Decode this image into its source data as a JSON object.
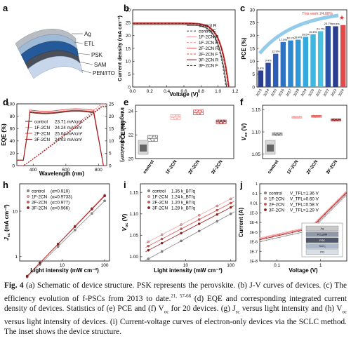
{
  "panels": {
    "a": {
      "letter": "a",
      "layers": [
        "Ag",
        "ETL",
        "PSK",
        "SAM",
        "PEN/ITO"
      ]
    },
    "b": {
      "letter": "b",
      "chart_data": {
        "type": "line",
        "xlabel": "Voltage (V)",
        "ylabel": "Current density (mA cm⁻²)",
        "xlim": [
          0,
          1.2
        ],
        "ylim": [
          0,
          30
        ],
        "xticks": [
          "0.0",
          "0.2",
          "0.4",
          "0.6",
          "0.8",
          "1.0",
          "1.2"
        ],
        "yticks": [
          "0",
          "5",
          "10",
          "15",
          "20",
          "25",
          "30"
        ],
        "legend_position": "right",
        "series": [
          {
            "name": "control R",
            "color": "#333333",
            "dash": "solid",
            "jsc": 24.3,
            "voc": 1.1
          },
          {
            "name": "control F",
            "color": "#555555",
            "dash": "dashed",
            "jsc": 24.2,
            "voc": 1.09
          },
          {
            "name": "1F-2CN R",
            "color": "#f2a3a3",
            "dash": "solid",
            "jsc": 24.6,
            "voc": 1.12
          },
          {
            "name": "1F-2CN F",
            "color": "#f2a3a3",
            "dash": "dashed",
            "jsc": 24.5,
            "voc": 1.115
          },
          {
            "name": "2F-2CN R",
            "color": "#e35555",
            "dash": "solid",
            "jsc": 25.0,
            "voc": 1.13
          },
          {
            "name": "2F-2CN F",
            "color": "#e35555",
            "dash": "dashed",
            "jsc": 24.9,
            "voc": 1.125
          },
          {
            "name": "3F-2CN R",
            "color": "#a01818",
            "dash": "solid",
            "jsc": 24.8,
            "voc": 1.125
          },
          {
            "name": "3F-2CN F",
            "color": "#a01818",
            "dash": "dashed",
            "jsc": 24.7,
            "voc": 1.12
          }
        ]
      }
    },
    "c": {
      "letter": "c",
      "chart_data": {
        "type": "bar",
        "ylabel": "PCE (%)",
        "ylim": [
          0,
          30
        ],
        "yticks": [
          "0",
          "5",
          "10",
          "15",
          "20",
          "25",
          "30"
        ],
        "categories": [
          "2013",
          "2014",
          "2015",
          "2016",
          "2017",
          "2018",
          "2019",
          "2020",
          "2021",
          "2022",
          "2023",
          "2024"
        ],
        "values": [
          6.4,
          9.4,
          12.9,
          17.5,
          18.1,
          18.4,
          19.5,
          20.5,
          21.7,
          23.7,
          23.6,
          24.08
        ],
        "value_labels": [
          "6.4%",
          "9.4%",
          "12.9%",
          "17.5%",
          "18.1%",
          "18.4%",
          "19.5%",
          "20.5%",
          "21.7%",
          "23.7%",
          "23.6%",
          ""
        ],
        "annotation": "This work 24.08%"
      }
    },
    "d": {
      "letter": "d",
      "chart_data": {
        "type": "line",
        "xlabel": "Wavelength (nm)",
        "ylabel": "EQE (%)",
        "ylabel2": "Integrated J_sc (mA/cm²)",
        "xlim": [
          300,
          850
        ],
        "ylim": [
          0,
          100
        ],
        "ylim2": [
          0,
          25
        ],
        "xticks": [
          "400",
          "600",
          "800"
        ],
        "yticks": [
          "0",
          "20",
          "40",
          "60",
          "80",
          "100"
        ],
        "yticks2": [
          "0",
          "5",
          "10",
          "15",
          "20",
          "25"
        ],
        "series": [
          {
            "name": "control",
            "value": "23.71 mA/cm²",
            "color": "#444444"
          },
          {
            "name": "1F-2CN",
            "value": "24.24 mA/cm²",
            "color": "#f2a3a3"
          },
          {
            "name": "2F-2CN",
            "value": "25.04 mA/cm²",
            "color": "#e35555"
          },
          {
            "name": "3F-2CN",
            "value": "24.03 mA/cm²",
            "color": "#a01818"
          }
        ]
      }
    },
    "e": {
      "letter": "e",
      "chart_data": {
        "type": "scatter",
        "ylabel": "PCE (%)",
        "ylim": [
          20,
          24.5
        ],
        "yticks": [
          "20",
          "22",
          "24"
        ],
        "categories": [
          "control",
          "1F-2CN",
          "2F-2CN",
          "3F-2CN"
        ],
        "medians": [
          21.7,
          23.5,
          23.9,
          23.1
        ],
        "spread": [
          0.25,
          0.2,
          0.2,
          0.15
        ],
        "colors": [
          "#777777",
          "#f2a3a3",
          "#e35555",
          "#a01818"
        ]
      }
    },
    "f": {
      "letter": "f",
      "chart_data": {
        "type": "scatter",
        "ylabel": "V_oc (V)",
        "ylim": [
          1.04,
          1.16
        ],
        "yticks": [
          "1.05",
          "1.10",
          "1.15"
        ],
        "categories": [
          "control",
          "1F-2CN",
          "2F-2CN",
          "3F-2CN"
        ],
        "medians": [
          1.095,
          1.133,
          1.135,
          1.127
        ],
        "spread": [
          0.003,
          0.002,
          0.002,
          0.002
        ],
        "colors": [
          "#777777",
          "#f2a3a3",
          "#e35555",
          "#a01818"
        ]
      }
    },
    "h": {
      "letter": "h",
      "chart_data": {
        "type": "scatter",
        "xlabel": "Light intensity (mW cm⁻²)",
        "ylabel": "J_sc (mA cm⁻²)",
        "xscale": "log",
        "yscale": "log",
        "xticks": [
          "10",
          "100"
        ],
        "yticks": [
          "1",
          "10"
        ],
        "x": [
          1.5,
          3,
          8,
          20,
          50,
          100
        ],
        "series": [
          {
            "name": "control",
            "alpha": "(α=0.919)",
            "color": "#888888"
          },
          {
            "name": "1F-2CN",
            "alpha": "(α=0.9733)",
            "color": "#f2a3a3"
          },
          {
            "name": "2F-2CN",
            "alpha": "(α=0.977)",
            "color": "#e35555"
          },
          {
            "name": "3F-2CN",
            "alpha": "(α=0.966)",
            "color": "#a01818"
          }
        ]
      }
    },
    "i": {
      "letter": "i",
      "chart_data": {
        "type": "scatter",
        "xlabel": "Light intensity (mW cm⁻²)",
        "ylabel": "V_oc (V)",
        "xscale": "log",
        "ylim": [
          0.99,
          1.17
        ],
        "yticks": [
          "1.00",
          "1.05",
          "1.10",
          "1.15"
        ],
        "xticks": [
          "10",
          "100"
        ],
        "x": [
          1.5,
          3,
          8,
          20,
          50,
          100
        ],
        "series": [
          {
            "name": "control",
            "slope": "1.35 k_BT/q",
            "color": "#888888",
            "v0": 0.995,
            "v100": 1.1
          },
          {
            "name": "1F-2CN",
            "slope": "1.24 k_BT/q",
            "color": "#f2a3a3",
            "v0": 1.035,
            "v100": 1.135
          },
          {
            "name": "2F-2CN",
            "slope": "1.20 k_BT/q",
            "color": "#e35555",
            "v0": 1.025,
            "v100": 1.125
          },
          {
            "name": "3F-2CN",
            "slope": "1.28 k_BT/q",
            "color": "#a01818",
            "v0": 1.015,
            "v100": 1.115
          }
        ]
      }
    },
    "j": {
      "letter": "j",
      "chart_data": {
        "type": "line",
        "xlabel": "Voltage (V)",
        "ylabel": "Current (A)",
        "xscale": "log",
        "yscale": "log",
        "xticks": [
          "0.1",
          "1"
        ],
        "yticks": [
          "1E-8",
          "1E-7",
          "1E-6",
          "1E-5",
          "1E-4",
          "1E-3",
          "0.01",
          "0.1",
          "1"
        ],
        "series": [
          {
            "name": "control",
            "vtfl": "V_TFL=1.36 V",
            "color": "#888888"
          },
          {
            "name": "1F-2CN",
            "vtfl": "V_TFL=0.60 V",
            "color": "#f2a3a3"
          },
          {
            "name": "2F-2CN",
            "vtfl": "V_TFL=0.58 V",
            "color": "#e35555"
          },
          {
            "name": "3F-2CN",
            "vtfl": "V_TFL=1.29 V",
            "color": "#a01818"
          }
        ],
        "inset_layers": [
          "Ag",
          "PC₆₁BM",
          "PSK",
          "SnO₂",
          "ITO"
        ]
      }
    }
  },
  "caption": {
    "label": "Fig. 4",
    "text": " (a) Schematic of device structure. PSK represents the perovskite. (b) J-V curves of devices. (c) The efficiency evolution of f-PSCs from 2013 to date.",
    "refs": "21, 57-66",
    "text2": " (d) EQE and corresponding integrated current density of devices. Statistics of (e) PCE and (f) V",
    "sub_oc": "oc",
    "text3": " for 20 devices. (g) J",
    "sub_sc": "sc",
    "text4": " versus light intensity and (h) V",
    "sub_oc2": "oc",
    "text5": " versus light intensity of devices. (i) Current-voltage curves of electron-only devices via the SCLC method. The inset shows the device structure."
  }
}
